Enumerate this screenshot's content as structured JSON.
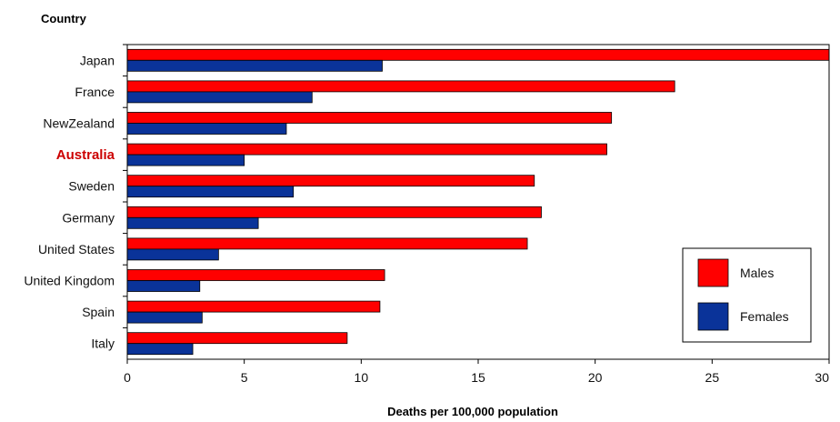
{
  "chart_data": {
    "type": "bar",
    "orientation": "horizontal",
    "title": "",
    "ylabel": "Country",
    "xlabel": "Deaths per 100,000 population",
    "categories": [
      "Japan",
      "France",
      "NewZealand",
      "Australia",
      "Sweden",
      "Germany",
      "United States",
      "United Kingdom",
      "Spain",
      "Italy"
    ],
    "highlight_category": "Australia",
    "highlight_color": "#cc0000",
    "series": [
      {
        "name": "Males",
        "color": "#ff0000",
        "values": [
          30.0,
          23.4,
          20.7,
          20.5,
          17.4,
          17.7,
          17.1,
          11.0,
          10.8,
          9.4
        ]
      },
      {
        "name": "Females",
        "color": "#0a3399",
        "values": [
          10.9,
          7.9,
          6.8,
          5.0,
          7.1,
          5.6,
          3.9,
          3.1,
          3.2,
          2.8
        ]
      }
    ],
    "xlim": [
      0,
      30
    ],
    "xticks": [
      "0",
      "5",
      "10",
      "15",
      "20",
      "25",
      "30"
    ],
    "grid": false,
    "legend_position": "bottom-right"
  }
}
